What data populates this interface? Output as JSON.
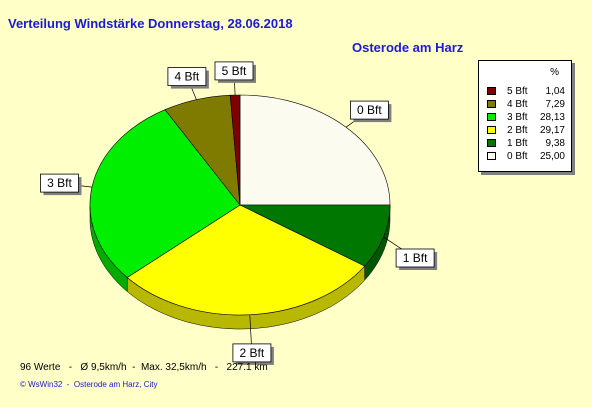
{
  "header": {
    "title": "Verteilung Windstärke  Donnerstag, 28.06.2018",
    "location": "Osterode am Harz"
  },
  "chart_data": {
    "type": "pie",
    "slices": [
      {
        "label": "0 Bft",
        "value": 25.0,
        "value_text": "25,00",
        "color": "#fbfbf0"
      },
      {
        "label": "1 Bft",
        "value": 9.38,
        "value_text": "9,38",
        "color": "#007800"
      },
      {
        "label": "2 Bft",
        "value": 29.17,
        "value_text": "29,17",
        "color": "#ffff00"
      },
      {
        "label": "3 Bft",
        "value": 28.13,
        "value_text": "28,13",
        "color": "#00ee00"
      },
      {
        "label": "4 Bft",
        "value": 7.29,
        "value_text": "7,29",
        "color": "#7f7a00"
      },
      {
        "label": "5 Bft",
        "value": 1.04,
        "value_text": "1,04",
        "color": "#7f0000"
      }
    ]
  },
  "legend": {
    "header": "%",
    "rows": [
      {
        "label": "5 Bft",
        "value": "1,04",
        "color": "#7f0000"
      },
      {
        "label": "4 Bft",
        "value": "7,29",
        "color": "#7f7a00"
      },
      {
        "label": "3 Bft",
        "value": "28,13",
        "color": "#00ee00"
      },
      {
        "label": "2 Bft",
        "value": "29,17",
        "color": "#ffff00"
      },
      {
        "label": "1 Bft",
        "value": "9,38",
        "color": "#007800"
      },
      {
        "label": "0 Bft",
        "value": "25,00",
        "color": "#fbfbf0"
      }
    ]
  },
  "footer": {
    "stats": "96 Werte   -   Ø 9,5km/h  -  Max. 32,5km/h   -   227.1 km",
    "credit": "© WsWin32  -  Osterode am Harz, City"
  }
}
